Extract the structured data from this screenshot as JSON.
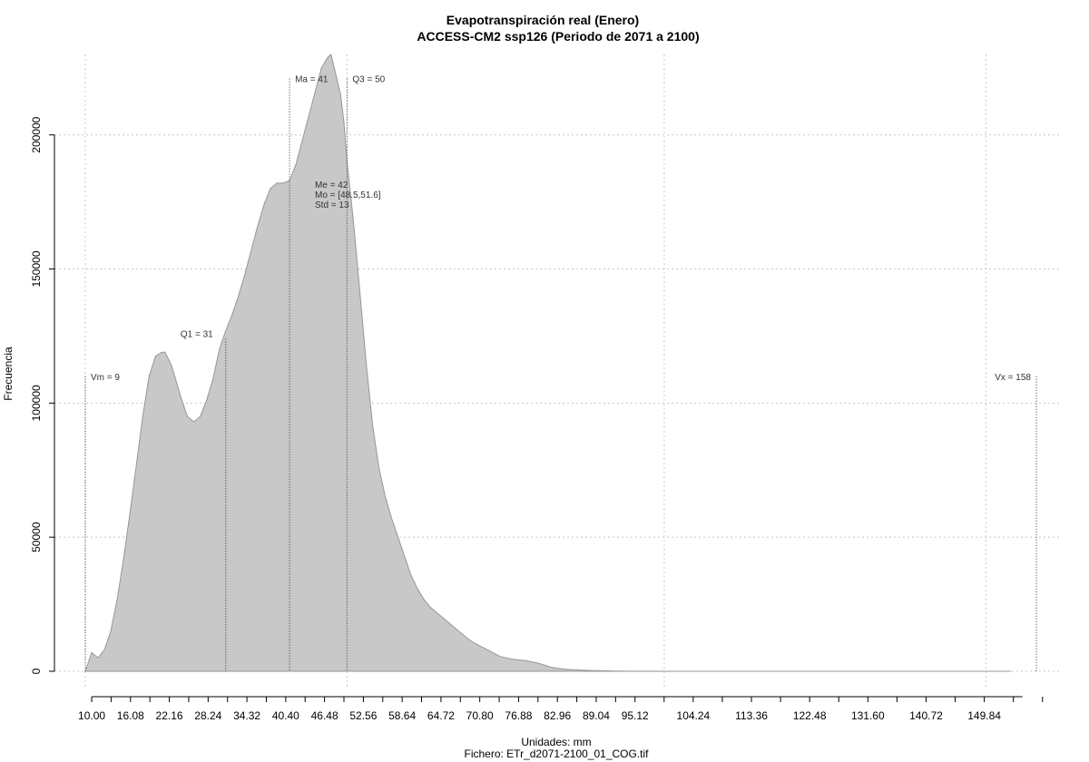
{
  "chart_data": {
    "type": "area",
    "title": "Evapotranspiración real (Enero)",
    "subtitle": "ACCESS-CM2 ssp126 (Periodo de 2071 a 2100)",
    "xlabel": "Unidades: mm",
    "caption": "Fichero: ETr_d2071-2100_01_COG.tif",
    "ylabel": "Frecuencia",
    "xlim": [
      9,
      158
    ],
    "ylim": [
      0,
      230000
    ],
    "x_ticks": [
      10,
      16.08,
      22.16,
      28.24,
      34.32,
      40.4,
      46.48,
      52.56,
      58.64,
      64.72,
      70.8,
      76.88,
      82.96,
      89.04,
      95.12,
      104.24,
      113.36,
      122.48,
      131.6,
      140.72,
      149.84
    ],
    "x_tick_labels": [
      "10.00",
      "16.08",
      "22.16",
      "28.24",
      "34.32",
      "40.40",
      "46.48",
      "52.56",
      "58.64",
      "64.72",
      "70.80",
      "76.88",
      "82.96",
      "89.04",
      "95.12",
      "104.24",
      "113.36",
      "122.48",
      "131.60",
      "140.72",
      "149.84"
    ],
    "y_ticks": [
      0,
      50000,
      100000,
      150000,
      200000
    ],
    "y_tick_labels": [
      "0",
      "50000",
      "100000",
      "150000",
      "200000"
    ],
    "x_grid": [
      9,
      50,
      99.7,
      150.1
    ],
    "grid": true,
    "fill_color": "#c8c8c8",
    "line_color": "#969696",
    "series": [
      {
        "x": [
          9,
          10,
          11,
          12,
          13,
          14,
          15,
          16,
          17,
          18,
          19,
          20,
          21,
          21.5,
          22.5,
          23,
          24,
          25,
          26,
          27,
          28,
          29,
          30,
          31,
          32,
          33,
          34,
          35,
          36,
          37,
          38,
          39,
          40,
          41,
          42,
          43,
          44,
          45,
          46,
          47,
          47.5,
          48,
          49,
          49.5,
          50,
          51,
          52,
          53,
          54,
          55,
          56,
          57,
          58,
          59,
          60,
          61,
          62,
          63,
          64,
          65,
          66,
          67,
          68,
          69,
          70,
          72,
          74,
          76,
          78,
          80,
          82,
          84,
          86,
          88,
          90,
          92,
          94,
          96,
          98,
          100,
          105,
          110,
          120,
          130,
          140,
          150,
          154
        ],
        "y": [
          0,
          7000,
          5000,
          8000,
          15000,
          27000,
          42000,
          59000,
          77000,
          95000,
          110000,
          117500,
          119000,
          119000,
          114000,
          110000,
          102000,
          95000,
          93000,
          95000,
          101000,
          109000,
          120000,
          127000,
          133000,
          140000,
          148000,
          157000,
          166000,
          174000,
          180000,
          182000,
          182000,
          183000,
          189000,
          198000,
          207000,
          216000,
          225000,
          229000,
          230000,
          225000,
          215000,
          205000,
          190000,
          168000,
          142000,
          115000,
          92000,
          76000,
          65000,
          57000,
          50000,
          43000,
          36000,
          31000,
          27000,
          24000,
          22000,
          20000,
          18000,
          16000,
          14000,
          12000,
          10500,
          8000,
          5500,
          4500,
          4000,
          3000,
          1500,
          800,
          500,
          300,
          200,
          100,
          50,
          30,
          20,
          0,
          0,
          0,
          0,
          0,
          0,
          0,
          0
        ]
      }
    ],
    "annotations": [
      {
        "text": "Vm = 9",
        "x": 9,
        "y": 110000,
        "line_to": 110000,
        "anchor": "right"
      },
      {
        "text": "Q1 = 31",
        "x": 31,
        "y": 124000,
        "line_to": 124000,
        "anchor": "left-above"
      },
      {
        "text": "Ma = 41",
        "x": 41,
        "y": 221000,
        "line_to": 221000,
        "anchor": "right"
      },
      {
        "text": "Q3 = 50",
        "x": 50,
        "y": 221000,
        "line_to": 221000,
        "anchor": "right"
      },
      {
        "text": "Vx = 158",
        "x": 158,
        "y": 110000,
        "line_to": 110000,
        "anchor": "left"
      }
    ],
    "stats_block": [
      "Me = 42",
      "Mo = [48.5,51.6]",
      "Std = 13"
    ]
  }
}
